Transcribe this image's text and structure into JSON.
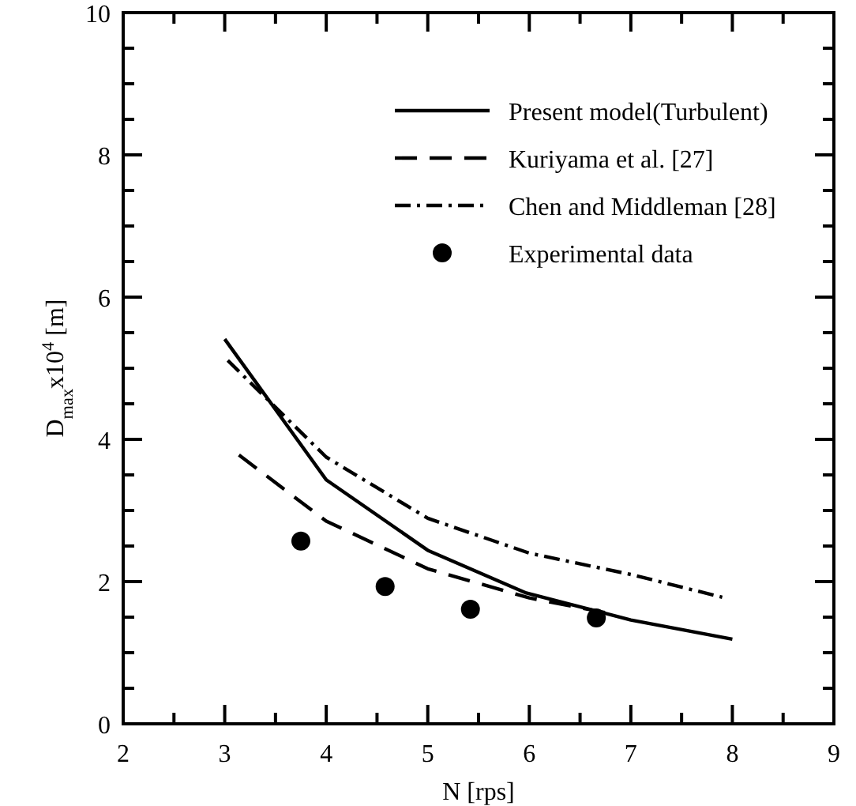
{
  "chart_data": {
    "type": "line",
    "xlabel": "N [rps]",
    "ylabel": "D$_{max}$x10$^{4}$ [m]",
    "xlim": [
      2,
      9
    ],
    "ylim": [
      0,
      10
    ],
    "xticks": [
      2,
      3,
      4,
      5,
      6,
      7,
      8,
      9
    ],
    "yticks": [
      0,
      2,
      4,
      6,
      8,
      10
    ],
    "grid": false,
    "legend": "top right",
    "series": [
      {
        "name": "Present model(Turbulent)",
        "color": "#000000",
        "line_style": "solid",
        "x": [
          3,
          4,
          5,
          5.97,
          7,
          8
        ],
        "values": [
          5.41,
          3.43,
          2.44,
          1.84,
          1.46,
          1.19
        ]
      },
      {
        "name": "Kuriyama et al. [27]",
        "color": "#000000",
        "line_style": "dashed",
        "x": [
          3.14,
          4,
          5,
          6,
          6.76
        ],
        "values": [
          3.78,
          2.85,
          2.18,
          1.77,
          1.56
        ]
      },
      {
        "name": "Chen and Middleman [28]",
        "color": "#000000",
        "line_style": "dashdot",
        "x": [
          3.03,
          4,
          5,
          6,
          7,
          7.9
        ],
        "values": [
          5.11,
          3.75,
          2.89,
          2.4,
          2.1,
          1.78
        ]
      },
      {
        "name": "Experimental data",
        "type": "scatter",
        "marker": "circle",
        "color": "#000000",
        "x": [
          3.75,
          4.58,
          5.42,
          6.66
        ],
        "values": [
          2.57,
          1.93,
          1.61,
          1.49
        ]
      }
    ]
  }
}
